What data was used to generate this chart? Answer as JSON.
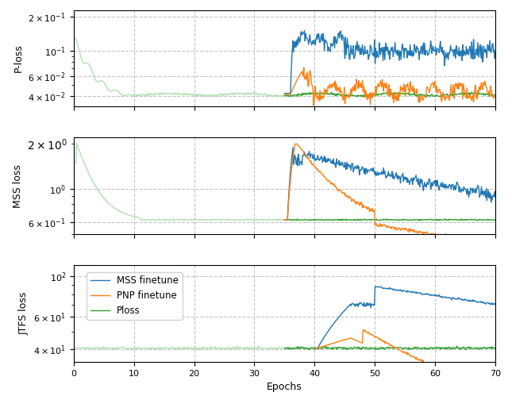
{
  "colors": {
    "blue": "#1f77b4",
    "orange": "#ff7f0e",
    "green": "#2ca02c",
    "green_light": "#b2dfb2"
  },
  "legend_labels": [
    "MSS finetune",
    "PNP finetune",
    "Ploss"
  ],
  "ylabels": [
    "P-loss",
    "MSS loss",
    "JTFS loss"
  ],
  "xlabel": "Epochs",
  "xlim": [
    0,
    70
  ],
  "xticks": [
    0,
    10,
    20,
    30,
    40,
    50,
    60,
    70
  ],
  "grid_color": "#aaaaaa",
  "grid_style": "--",
  "grid_alpha": 0.7
}
